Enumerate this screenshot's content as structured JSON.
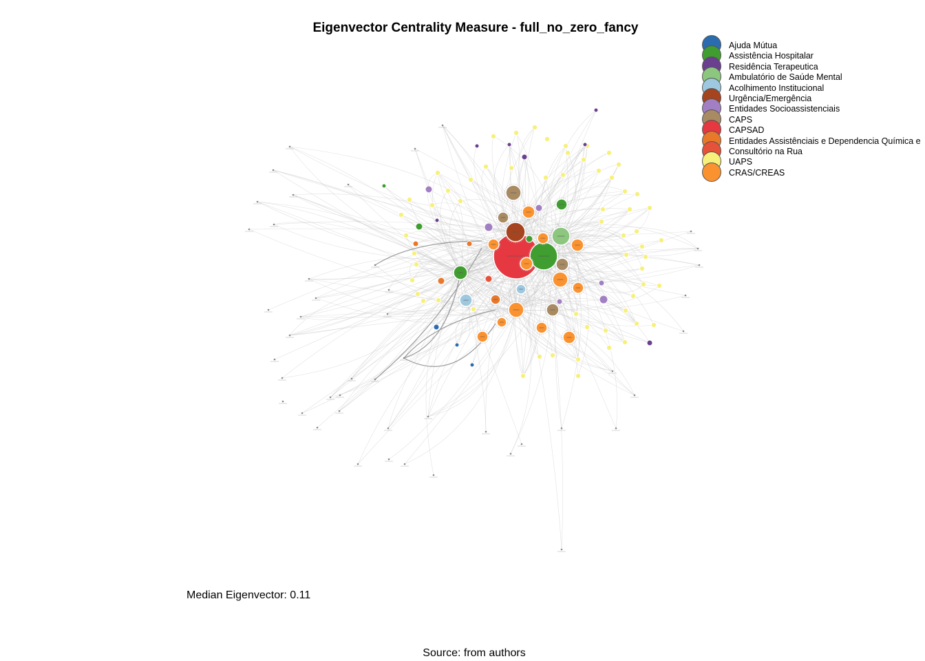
{
  "title": "Eigenvector Centrality Measure - full_no_zero_fancy",
  "legend": [
    {
      "label": "Ajuda Mútua",
      "color": "#2b6cb0"
    },
    {
      "label": "Assistência Hospitalar",
      "color": "#3f9e2f"
    },
    {
      "label": "Residência Terapeutica",
      "color": "#6b3f8f"
    },
    {
      "label": "Ambulatório de Saúde Mental",
      "color": "#8cc67f"
    },
    {
      "label": "Acolhimento Institucional",
      "color": "#9ec8e0"
    },
    {
      "label": "Urgência/Emergência",
      "color": "#a5441f"
    },
    {
      "label": "Entidades Socioassistenciais",
      "color": "#a27fc2"
    },
    {
      "label": "CAPS",
      "color": "#a88a63"
    },
    {
      "label": "CAPSAD",
      "color": "#e53840"
    },
    {
      "label": "Entidades Assistênciais e Dependencia Química e",
      "color": "#e8782a"
    },
    {
      "label": "Consultório na Rua",
      "color": "#e6513a"
    },
    {
      "label": "UAPS",
      "color": "#f7f07a"
    },
    {
      "label": "CRAS/CREAS",
      "color": "#fb9230"
    }
  ],
  "median_label": "Median Eigenvector: 0.11",
  "source_label": "Source: from authors"
}
